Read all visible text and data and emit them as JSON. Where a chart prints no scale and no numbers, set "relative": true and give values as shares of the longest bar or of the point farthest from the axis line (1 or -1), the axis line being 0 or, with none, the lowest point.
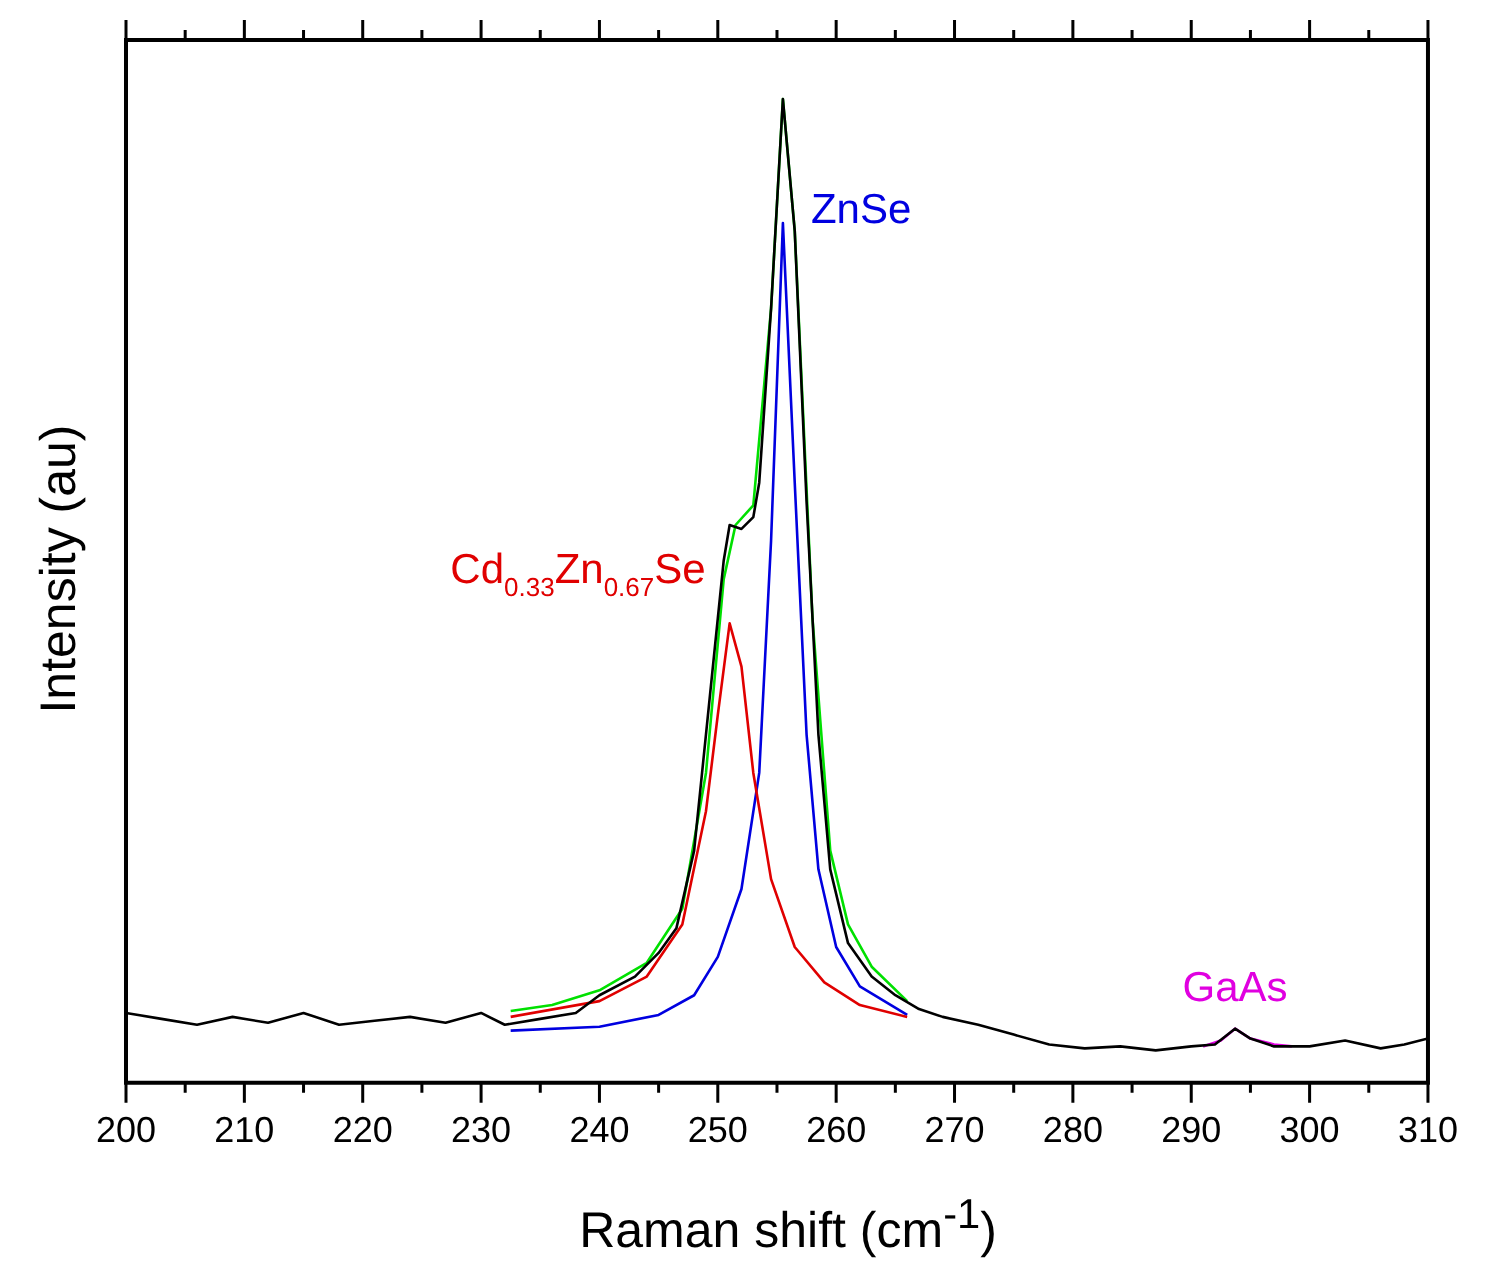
{
  "chart_data": {
    "type": "line",
    "xlabel": "Raman shift (cm$^{-1}$)",
    "ylabel": "Intensity (au)",
    "relative": true,
    "xlim": [
      200,
      310
    ],
    "xticks": [
      200,
      {
        "value": 205,
        "label": null
      },
      210,
      {
        "value": 215,
        "label": null
      },
      220,
      {
        "value": 225,
        "label": null
      },
      230,
      {
        "value": 235,
        "label": null
      },
      240,
      {
        "value": 245,
        "label": null
      },
      250,
      {
        "value": 255,
        "label": null
      },
      260,
      {
        "value": 265,
        "label": null
      },
      270,
      {
        "value": 275,
        "label": null
      },
      280,
      {
        "value": 285,
        "label": null
      },
      290,
      {
        "value": 295,
        "label": null
      },
      300,
      {
        "value": 305,
        "label": null
      },
      310
    ],
    "grid": false,
    "legend": false,
    "marker": "none",
    "line_style": "solid",
    "series": [
      {
        "color": "#000000",
        "x": [
          200,
          203,
          206,
          209,
          212,
          215,
          218,
          221,
          224,
          227,
          230,
          232,
          235,
          238,
          240,
          243,
          245,
          246.5,
          248,
          249,
          250,
          250.5,
          251,
          252,
          253,
          253.5,
          254.5,
          255.5,
          256.5,
          257.5,
          258.5,
          259.5,
          261,
          263,
          265,
          267,
          269,
          272,
          275,
          278,
          281,
          284,
          287,
          290,
          292,
          293.7,
          295,
          297,
          300,
          303,
          306,
          308,
          310
        ],
        "values": [
          0.071,
          0.065,
          0.059,
          0.067,
          0.061,
          0.071,
          0.059,
          0.063,
          0.067,
          0.061,
          0.071,
          0.059,
          0.065,
          0.071,
          0.089,
          0.108,
          0.132,
          0.157,
          0.236,
          0.354,
          0.472,
          0.531,
          0.567,
          0.563,
          0.575,
          0.61,
          0.787,
          1,
          0.866,
          0.591,
          0.354,
          0.217,
          0.142,
          0.108,
          0.089,
          0.075,
          0.067,
          0.059,
          0.049,
          0.039,
          0.035,
          0.037,
          0.033,
          0.037,
          0.039,
          0.055,
          0.045,
          0.037,
          0.037,
          0.043,
          0.035,
          0.039,
          0.045
        ]
      },
      {
        "color": "#00e000",
        "x": [
          232.5,
          236,
          240,
          244,
          247,
          249,
          250.5,
          251.5,
          253,
          254.5,
          255.5,
          256.5,
          258,
          259.5,
          261,
          263,
          266
        ],
        "values": [
          0.073,
          0.079,
          0.094,
          0.122,
          0.177,
          0.315,
          0.512,
          0.567,
          0.587,
          0.787,
          1,
          0.866,
          0.472,
          0.236,
          0.161,
          0.118,
          0.083
        ]
      },
      {
        "name": "Cd$_{0.33}$Zn$_{0.67}$Se",
        "color": "#e00000",
        "x": [
          232.5,
          240,
          244,
          247,
          249,
          250,
          251,
          252,
          253,
          254.5,
          256.5,
          259,
          262,
          266
        ],
        "values": [
          0.067,
          0.083,
          0.108,
          0.161,
          0.276,
          0.374,
          0.467,
          0.423,
          0.315,
          0.207,
          0.138,
          0.102,
          0.079,
          0.067
        ]
      },
      {
        "name": "ZnSe",
        "color": "#0000e0",
        "x": [
          232.5,
          240,
          245,
          248,
          250,
          252,
          253.5,
          254.5,
          255.5,
          256.5,
          257.5,
          258.5,
          260,
          262,
          266
        ],
        "values": [
          0.053,
          0.057,
          0.069,
          0.089,
          0.128,
          0.197,
          0.315,
          0.551,
          0.874,
          0.61,
          0.354,
          0.217,
          0.138,
          0.098,
          0.069
        ]
      },
      {
        "name": "GaAs",
        "color": "#e000e0",
        "x": [
          291,
          292.5,
          293.7,
          295,
          297,
          298.5
        ],
        "values": [
          0.037,
          0.043,
          0.055,
          0.045,
          0.039,
          0.037
        ]
      }
    ]
  }
}
